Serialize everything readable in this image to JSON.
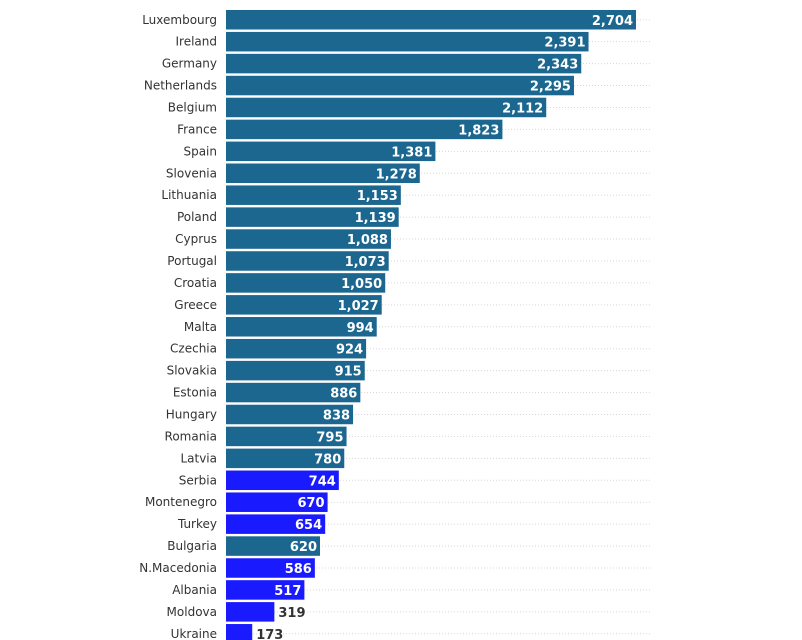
{
  "colors": {
    "eu": "#1c6790",
    "non_eu": "#1a1aff",
    "label_text": "#333333",
    "value_text_inside": "#ffffff",
    "value_text_outside": "#333333"
  },
  "chart_data": {
    "type": "bar",
    "orientation": "horizontal",
    "categories": [
      "Luxembourg",
      "Ireland",
      "Germany",
      "Netherlands",
      "Belgium",
      "France",
      "Spain",
      "Slovenia",
      "Lithuania",
      "Poland",
      "Cyprus",
      "Portugal",
      "Croatia",
      "Greece",
      "Malta",
      "Czechia",
      "Slovakia",
      "Estonia",
      "Hungary",
      "Romania",
      "Latvia",
      "Serbia",
      "Montenegro",
      "Turkey",
      "Bulgaria",
      "N.Macedonia",
      "Albania",
      "Moldova",
      "Ukraine"
    ],
    "values": [
      2704,
      2391,
      2343,
      2295,
      2112,
      1823,
      1381,
      1278,
      1153,
      1139,
      1088,
      1073,
      1050,
      1027,
      994,
      924,
      915,
      886,
      838,
      795,
      780,
      744,
      670,
      654,
      620,
      586,
      517,
      319,
      173
    ],
    "value_labels": [
      "2,704",
      "2,391",
      "2,343",
      "2,295",
      "2,112",
      "1,823",
      "1,381",
      "1,278",
      "1,153",
      "1,139",
      "1,088",
      "1,073",
      "1,050",
      "1,027",
      "994",
      "924",
      "915",
      "886",
      "838",
      "795",
      "780",
      "744",
      "670",
      "654",
      "620",
      "586",
      "517",
      "319",
      "173"
    ],
    "groups": [
      "eu",
      "eu",
      "eu",
      "eu",
      "eu",
      "eu",
      "eu",
      "eu",
      "eu",
      "eu",
      "eu",
      "eu",
      "eu",
      "eu",
      "eu",
      "eu",
      "eu",
      "eu",
      "eu",
      "eu",
      "eu",
      "non_eu",
      "non_eu",
      "non_eu",
      "eu",
      "non_eu",
      "non_eu",
      "non_eu",
      "non_eu"
    ],
    "title": "",
    "xlabel": "",
    "ylabel": "",
    "xlim": [
      0,
      2800
    ],
    "grid": true,
    "legend": "none"
  }
}
